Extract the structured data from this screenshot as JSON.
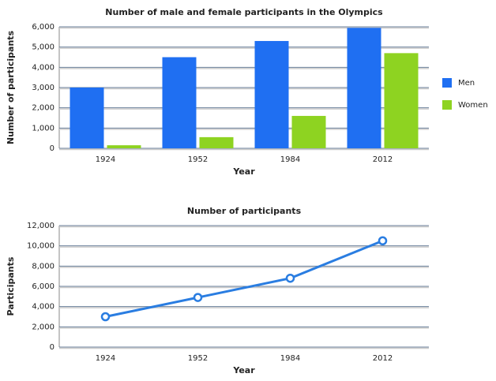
{
  "chart_data": [
    {
      "type": "bar",
      "title": "Number of male and female participants in the Olympics",
      "x_label": "Year",
      "y_label": "Number of participants",
      "categories": [
        "1924",
        "1952",
        "1984",
        "2012"
      ],
      "series": [
        {
          "name": "Men",
          "color": "#1f6ff2",
          "values": [
            3000,
            4500,
            5300,
            5950
          ]
        },
        {
          "name": "Women",
          "color": "#8ed321",
          "values": [
            150,
            550,
            1600,
            4700
          ]
        }
      ],
      "ylim": [
        0,
        6000
      ],
      "yticks": [
        0,
        {
          "value": 1000,
          "label": "1,000"
        },
        {
          "value": 2000,
          "label": "2,000"
        },
        {
          "value": 3000,
          "label": "3,000"
        },
        {
          "value": 4000,
          "label": "4,000"
        },
        {
          "value": 5000,
          "label": "5,000"
        },
        {
          "value": 6000,
          "label": "6,000"
        }
      ],
      "grid": true,
      "legend": "right"
    },
    {
      "type": "line",
      "title": "Number of participants",
      "x_label": "Year",
      "y_label": "Participants",
      "categories": [
        "1924",
        "1952",
        "1984",
        "2012"
      ],
      "values": [
        3000,
        4900,
        6800,
        10500
      ],
      "color": "#2a7de1",
      "ylim": [
        0,
        12000
      ],
      "yticks": [
        0,
        {
          "value": 2000,
          "label": "2,000"
        },
        {
          "value": 4000,
          "label": "4,000"
        },
        {
          "value": 6000,
          "label": "6,000"
        },
        {
          "value": 8000,
          "label": "8,000"
        },
        {
          "value": 10000,
          "label": "10,000"
        },
        {
          "value": 12000,
          "label": "12,000"
        }
      ],
      "grid": true
    }
  ]
}
